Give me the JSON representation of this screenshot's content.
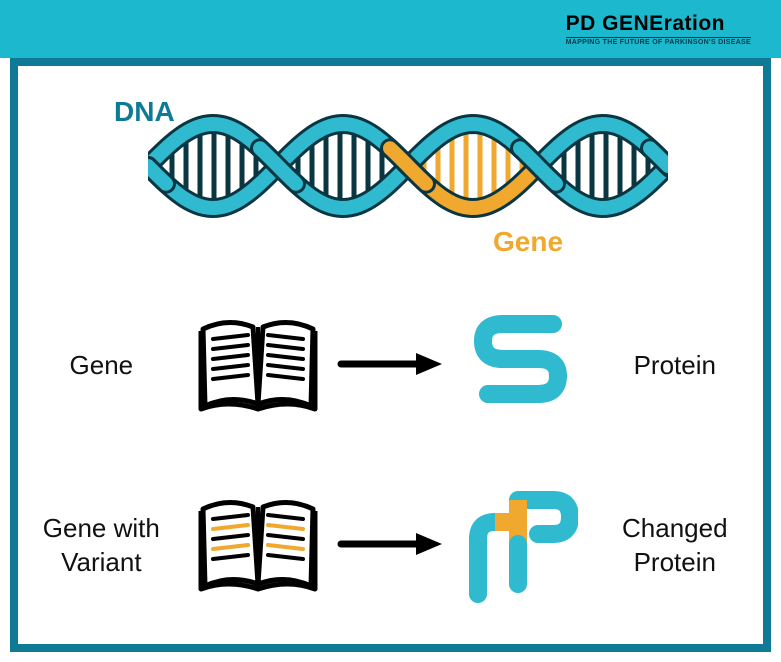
{
  "header": {
    "logo_main": "PD GENEration",
    "logo_sub": "MAPPING THE FUTURE OF PARKINSON'S DISEASE",
    "bg_color": "#1bb8ce"
  },
  "frame": {
    "border_color": "#0e7a96",
    "bg_color": "#ffffff"
  },
  "dna": {
    "label_dna": "DNA",
    "label_gene": "Gene",
    "dna_color": "#0e7a96",
    "gene_color": "#f0a82e",
    "helix_primary": "#2fbad0",
    "helix_accent": "#f0a82e",
    "helix_stroke": "#0a3642",
    "bar_color": "#0a3642",
    "accent_segment_index": 2,
    "segments": 4
  },
  "rows": [
    {
      "left_label": "Gene",
      "right_label": "Protein",
      "book_variant": false,
      "protein_variant": false
    },
    {
      "left_label": "Gene with Variant",
      "right_label": "Changed Protein",
      "book_variant": true,
      "protein_variant": true
    }
  ],
  "colors": {
    "text": "#111111",
    "black": "#000000",
    "protein_primary": "#2fbad0",
    "protein_accent": "#f0a82e",
    "book_stroke": "#000000",
    "book_accent": "#f0a82e",
    "arrow": "#000000"
  },
  "typography": {
    "label_fontsize": 26,
    "dna_label_fontsize": 28,
    "logo_fontsize": 21
  }
}
